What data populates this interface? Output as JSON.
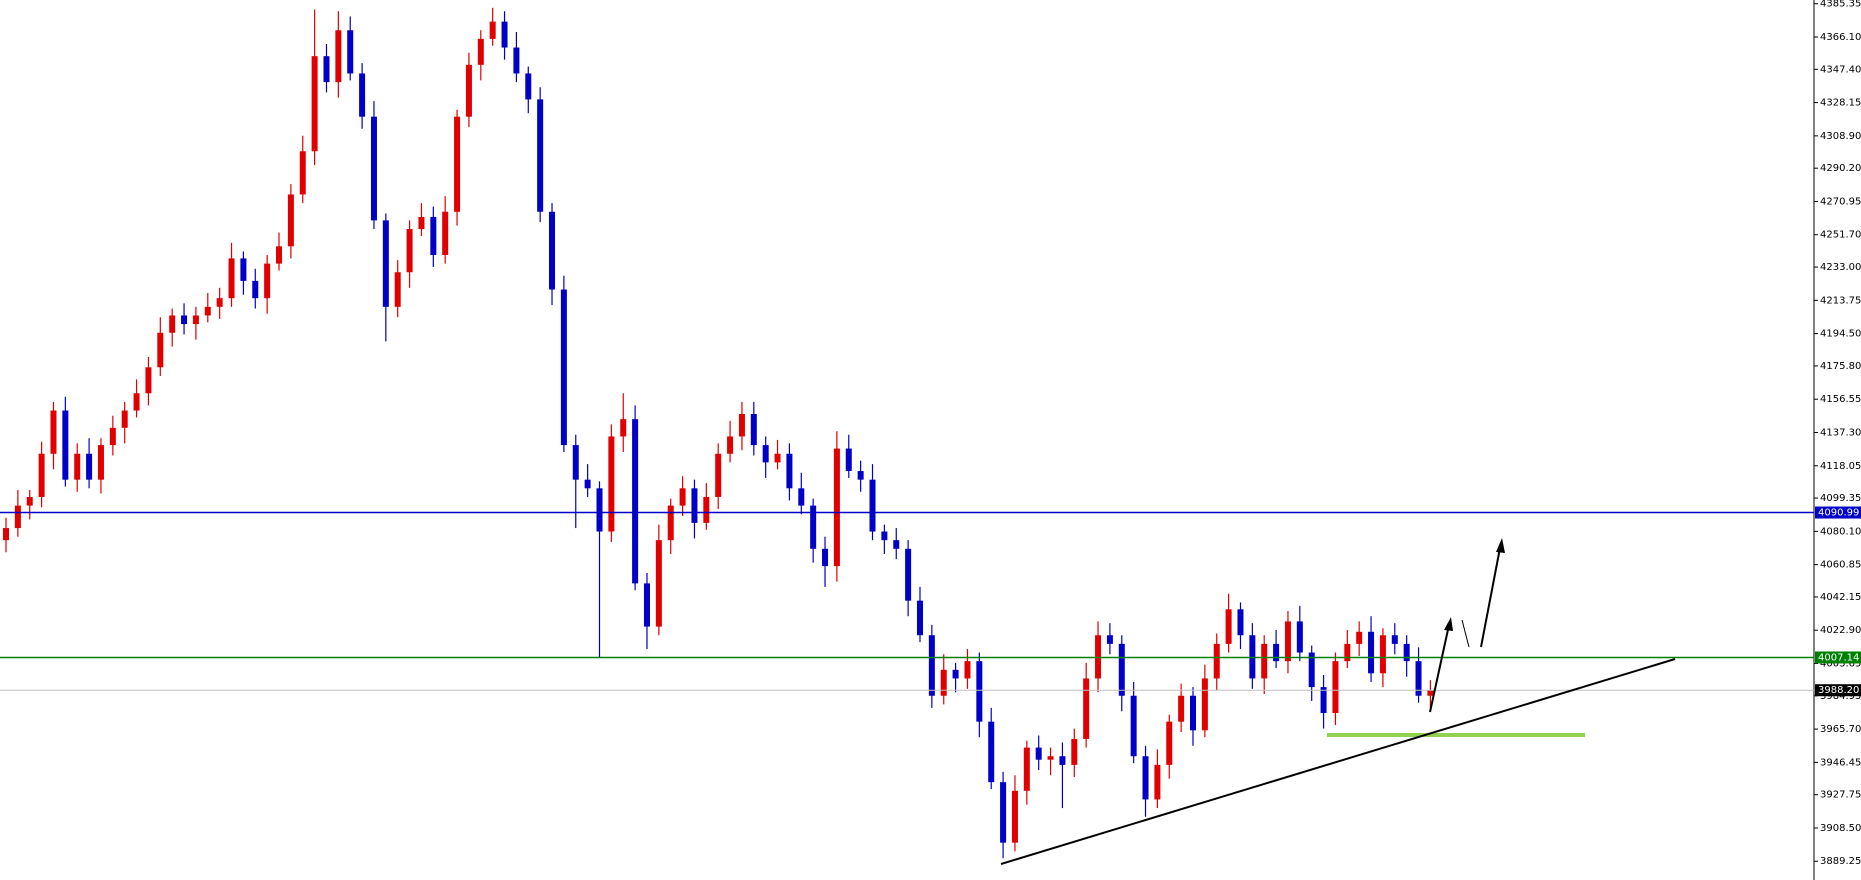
{
  "chart_data": {
    "type": "candlestick",
    "up_color": "#e00000",
    "down_color": "#0000c8",
    "ylim": [
      3878.4,
      4387.5
    ],
    "yticks": [
      {
        "value": 4385.35,
        "label": "4385.35"
      },
      {
        "value": 4366.1,
        "label": "4366.10"
      },
      {
        "value": 4347.4,
        "label": "4347.40"
      },
      {
        "value": 4328.15,
        "label": "4328.15"
      },
      {
        "value": 4308.9,
        "label": "4308.90"
      },
      {
        "value": 4290.2,
        "label": "4290.20"
      },
      {
        "value": 4270.95,
        "label": "4270.95"
      },
      {
        "value": 4251.7,
        "label": "4251.70"
      },
      {
        "value": 4233,
        "label": "4233.00"
      },
      {
        "value": 4213.75,
        "label": "4213.75"
      },
      {
        "value": 4194.5,
        "label": "4194.50"
      },
      {
        "value": 4175.8,
        "label": "4175.80"
      },
      {
        "value": 4156.55,
        "label": "4156.55"
      },
      {
        "value": 4137.3,
        "label": "4137.30"
      },
      {
        "value": 4118.05,
        "label": "4118.05"
      },
      {
        "value": 4099.35,
        "label": "4099.35"
      },
      {
        "value": 4080.1,
        "label": "4080.10"
      },
      {
        "value": 4060.85,
        "label": "4060.85"
      },
      {
        "value": 4042.15,
        "label": "4042.15"
      },
      {
        "value": 4022.9,
        "label": "4022.90"
      },
      {
        "value": 4003.65,
        "label": "4003.65"
      },
      {
        "value": 3984.95,
        "label": "3984.95"
      },
      {
        "value": 3965.7,
        "label": "3965.70"
      },
      {
        "value": 3946.45,
        "label": "3946.45"
      },
      {
        "value": 3927.75,
        "label": "3927.75"
      },
      {
        "value": 3908.5,
        "label": "3908.50"
      },
      {
        "value": 3889.25,
        "label": "3889.25"
      }
    ],
    "levels": [
      {
        "price": 4090.99,
        "color": "#0000c8"
      },
      {
        "price": 4007.14,
        "color": "#008000"
      },
      {
        "price": 3988.2,
        "label": "3988.20",
        "color": "#000000",
        "line_color": "#c0c0c0"
      }
    ],
    "open": [
      4075,
      4082,
      4095,
      4100,
      4125,
      4150,
      4110,
      4125,
      4110,
      4130,
      4140,
      4150,
      4160,
      4175,
      4195,
      4205,
      4200,
      4205,
      4210,
      4215,
      4238,
      4225,
      4215,
      4235,
      4245,
      4275,
      4300,
      4355,
      4340,
      4370,
      4345,
      4320,
      4260,
      4210,
      4230,
      4255,
      4262,
      4240,
      4265,
      4320,
      4350,
      4365,
      4375,
      4360,
      4345,
      4330,
      4265,
      4220,
      4130,
      4110,
      4105,
      4080,
      4135,
      4145,
      4050,
      4025,
      4075,
      4095,
      4105,
      4085,
      4100,
      4125,
      4135,
      4148,
      4130,
      4120,
      4125,
      4105,
      4095,
      4070,
      4060,
      4128,
      4115,
      4110,
      4080,
      4075,
      4070,
      4040,
      4020,
      3985,
      4000,
      3995,
      4005,
      3970,
      3935,
      3900,
      3930,
      3955,
      3948,
      3950,
      3945,
      3960,
      3995,
      4020,
      4015,
      3985,
      3950,
      3925,
      3945,
      3970,
      3985,
      3965,
      3995,
      4015,
      4035,
      4020,
      3995,
      4015,
      4005,
      4028,
      4010,
      3990,
      3975,
      4005,
      4015,
      4022,
      3998,
      4020,
      4015,
      4005,
      3985
    ],
    "high": [
      4088,
      4104,
      4104,
      4132,
      4155,
      4158,
      4131,
      4134,
      4134,
      4147,
      4155,
      4168,
      4181,
      4204,
      4209,
      4212,
      4210,
      4218,
      4221,
      4247,
      4242,
      4232,
      4240,
      4253,
      4281,
      4309,
      4382,
      4362,
      4381,
      4378,
      4351,
      4329,
      4264,
      4237,
      4260,
      4270,
      4268,
      4274,
      4324,
      4357,
      4370,
      4383,
      4381,
      4369,
      4349,
      4337,
      4270,
      4228,
      4136,
      4119,
      4109,
      4142,
      4160,
      4153,
      4056,
      4084,
      4099,
      4112,
      4110,
      4108,
      4131,
      4144,
      4155,
      4155,
      4135,
      4133,
      4131,
      4114,
      4099,
      4077,
      4138,
      4136,
      4121,
      4119,
      4084,
      4082,
      4075,
      4048,
      4026,
      4009,
      4004,
      4012,
      4010,
      3978,
      3941,
      3939,
      3959,
      3962,
      3955,
      3958,
      3966,
      4004,
      4028,
      4027,
      4020,
      3993,
      3956,
      3954,
      3974,
      3992,
      3990,
      4003,
      4021,
      4044,
      4039,
      4027,
      4020,
      4023,
      4034,
      4037,
      4014,
      3997,
      4010,
      4023,
      4028,
      4031,
      4024,
      4027,
      4020,
      4013,
      3994
    ],
    "low": [
      4068,
      4077,
      4087,
      4094,
      4116,
      4106,
      4103,
      4105,
      4102,
      4124,
      4131,
      4146,
      4153,
      4170,
      4187,
      4194,
      4191,
      4201,
      4203,
      4210,
      4217,
      4209,
      4206,
      4231,
      4238,
      4270,
      4292,
      4334,
      4331,
      4341,
      4313,
      4255,
      4190,
      4204,
      4221,
      4251,
      4233,
      4235,
      4257,
      4314,
      4341,
      4361,
      4353,
      4340,
      4322,
      4259,
      4211,
      4126,
      4082,
      4100,
      4007,
      4074,
      4126,
      4046,
      4012,
      4020,
      4067,
      4089,
      4076,
      4081,
      4093,
      4120,
      4127,
      4124,
      4111,
      4116,
      4098,
      4090,
      4062,
      4048,
      4051,
      4111,
      4103,
      4075,
      4067,
      4064,
      4031,
      4016,
      3978,
      3980,
      3987,
      3989,
      3961,
      3931,
      3891,
      3895,
      3922,
      3942,
      3939,
      3920,
      3938,
      3955,
      3987,
      4009,
      3976,
      3946,
      3915,
      3920,
      3937,
      3964,
      3956,
      3961,
      3988,
      4010,
      4012,
      3989,
      3986,
      4001,
      3998,
      4005,
      3982,
      3966,
      3968,
      4001,
      4008,
      3993,
      3990,
      4009,
      3996,
      3981,
      3978
    ],
    "close": [
      4082,
      4095,
      4100,
      4125,
      4150,
      4110,
      4125,
      4110,
      4130,
      4140,
      4150,
      4160,
      4175,
      4195,
      4205,
      4200,
      4205,
      4210,
      4215,
      4238,
      4225,
      4215,
      4235,
      4245,
      4275,
      4300,
      4355,
      4340,
      4370,
      4345,
      4320,
      4260,
      4210,
      4230,
      4255,
      4262,
      4240,
      4265,
      4320,
      4350,
      4365,
      4375,
      4360,
      4345,
      4330,
      4265,
      4220,
      4130,
      4110,
      4105,
      4080,
      4135,
      4145,
      4050,
      4025,
      4075,
      4095,
      4105,
      4085,
      4100,
      4125,
      4135,
      4148,
      4130,
      4120,
      4125,
      4105,
      4095,
      4070,
      4060,
      4128,
      4115,
      4110,
      4080,
      4075,
      4070,
      4040,
      4020,
      3985,
      4000,
      3995,
      4005,
      3970,
      3935,
      3900,
      3930,
      3955,
      3948,
      3950,
      3945,
      3960,
      3995,
      4020,
      4015,
      3985,
      3950,
      3925,
      3945,
      3970,
      3985,
      3965,
      3995,
      4015,
      4035,
      4020,
      3995,
      4015,
      4005,
      4028,
      4010,
      3990,
      3975,
      4005,
      4015,
      4022,
      3998,
      4020,
      4015,
      4005,
      3985,
      3988.2
    ]
  }
}
